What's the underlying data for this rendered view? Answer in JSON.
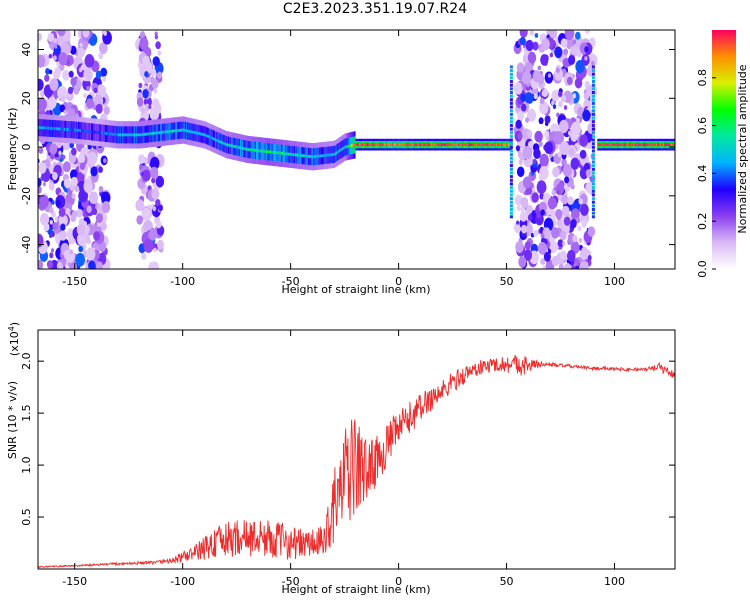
{
  "title": "C2E3.2023.351.19.07.R24",
  "chart_data": [
    {
      "type": "heatmap",
      "xlabel": "Height of straight line (km)",
      "ylabel": "Frequency (Hz)",
      "xlim": [
        -167,
        128
      ],
      "ylim": [
        -50,
        48
      ],
      "x_ticks": [
        -150,
        -100,
        -50,
        0,
        50,
        100
      ],
      "y_ticks": [
        -40,
        -20,
        0,
        20,
        40
      ],
      "colorbar": {
        "label": "Normalized spectral amplitude",
        "range": [
          0.0,
          1.0
        ],
        "ticks": [
          0.0,
          0.2,
          0.4,
          0.6,
          0.8
        ],
        "colormap": [
          "#ffffff",
          "#d9b8f5",
          "#8b3ef0",
          "#2000ff",
          "#00b4ff",
          "#00e8a0",
          "#00ff00",
          "#d8f000",
          "#ff9000",
          "#ff0060"
        ]
      },
      "ridge": {
        "height_km": [
          -167,
          -150,
          -140,
          -130,
          -120,
          -110,
          -100,
          -90,
          -80,
          -70,
          -60,
          -50,
          -40,
          -30,
          -25,
          -20,
          -10,
          0,
          10,
          20,
          30,
          40,
          50,
          95,
          100,
          110,
          120,
          128
        ],
        "frequency_hz": [
          8,
          7,
          6,
          5,
          5,
          6,
          7,
          5,
          1,
          -1,
          -2,
          -3,
          -4,
          -3,
          0,
          1,
          1,
          1,
          1,
          1,
          1,
          1,
          1,
          1,
          1,
          1,
          1,
          1
        ],
        "amplitude": [
          0.45,
          0.4,
          0.35,
          0.45,
          0.5,
          0.5,
          0.5,
          0.45,
          0.5,
          0.55,
          0.6,
          0.55,
          0.5,
          0.45,
          0.5,
          0.95,
          0.95,
          0.9,
          0.95,
          0.95,
          0.95,
          0.95,
          0.9,
          0.95,
          0.95,
          0.95,
          0.95,
          0.95
        ]
      },
      "noise_bands_km": [
        [
          -167,
          -135
        ],
        [
          -120,
          -110
        ],
        [
          55,
          90
        ]
      ],
      "transitions_km": [
        52,
        90
      ]
    },
    {
      "type": "line",
      "xlabel": "Height of straight line (km)",
      "ylabel": "SNR (10 * v/v)",
      "y_multiplier": "(x10",
      "y_multiplier_exp": "4",
      "y_multiplier_close": ")",
      "xlim": [
        -167,
        128
      ],
      "ylim": [
        0,
        23000
      ],
      "x_ticks": [
        -150,
        -100,
        -50,
        0,
        50,
        100
      ],
      "y_ticks": [
        5000,
        10000,
        15000,
        20000
      ],
      "y_tick_labels": [
        "0.5",
        "1.0",
        "1.5",
        "2.0"
      ],
      "color": "#ee2c2c",
      "series": [
        {
          "x": [
            -167,
            -150,
            -130,
            -115,
            -105,
            -95,
            -85,
            -75,
            -65,
            -55,
            -45,
            -35,
            -30,
            -25,
            -20,
            -15,
            -10,
            -5,
            0,
            5,
            10,
            15,
            20,
            25,
            30,
            35,
            40,
            45,
            50,
            55,
            60,
            65,
            70,
            75,
            80,
            85,
            90,
            95,
            100,
            105,
            110,
            115,
            120,
            125,
            128
          ],
          "y": [
            200,
            300,
            500,
            600,
            800,
            1500,
            2500,
            3000,
            3000,
            2800,
            2400,
            2500,
            6000,
            8500,
            10000,
            9500,
            10500,
            12000,
            13500,
            14500,
            15500,
            16500,
            17000,
            18000,
            18600,
            19200,
            19500,
            19700,
            19700,
            19700,
            19600,
            19700,
            19700,
            19600,
            19500,
            19400,
            19300,
            19300,
            19300,
            19200,
            19200,
            19200,
            19500,
            19000,
            18600
          ],
          "fluctuation": [
            60,
            80,
            120,
            150,
            300,
            700,
            1600,
            1800,
            1800,
            1800,
            1500,
            1600,
            3500,
            5000,
            5000,
            3000,
            2400,
            2000,
            1800,
            1600,
            1400,
            1300,
            1200,
            1000,
            900,
            800,
            700,
            700,
            800,
            1200,
            800,
            300,
            200,
            150,
            150,
            150,
            150,
            150,
            150,
            150,
            150,
            150,
            400,
            450,
            300
          ]
        }
      ]
    }
  ]
}
